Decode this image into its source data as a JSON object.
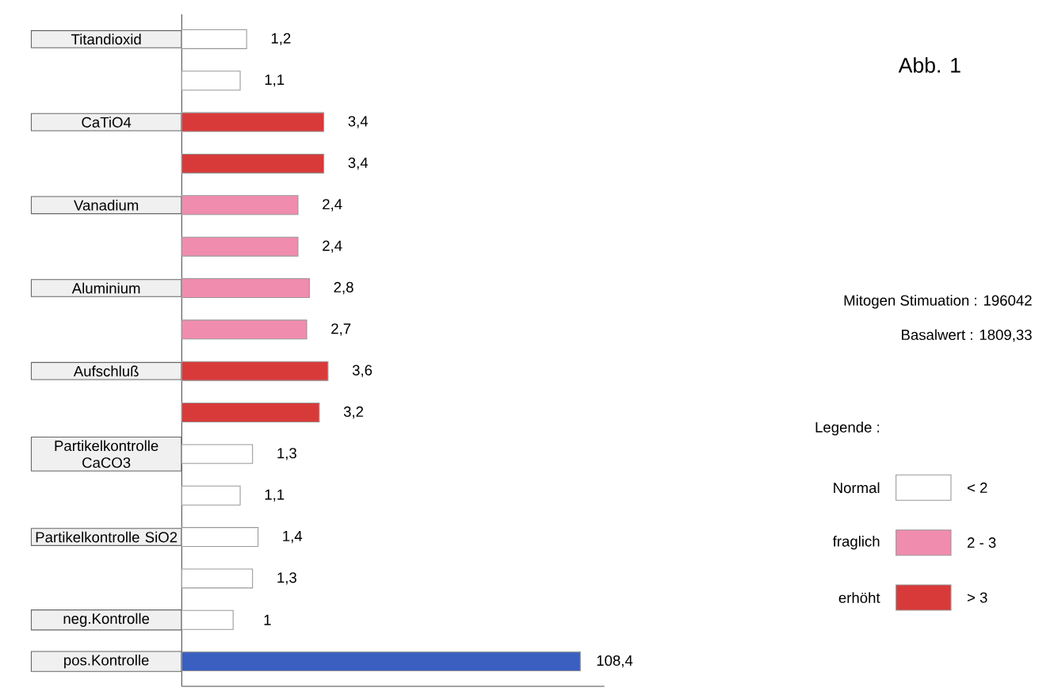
{
  "chart_data": {
    "type": "bar",
    "orientation": "horizontal",
    "title": "Abb. 1",
    "categories": [
      "Titandioxid",
      null,
      "CaTiO4",
      null,
      "Vanadium",
      null,
      "Aluminium",
      null,
      "Aufschluß",
      null,
      "Partikelkontrolle CaCO3",
      null,
      "Partikelkontrolle SiO2",
      null,
      "neg.Kontrolle",
      "pos.Kontrolle"
    ],
    "series": [
      {
        "name": "Normal",
        "color": "#ffffff",
        "values": [
          1.2,
          1.1,
          null,
          null,
          null,
          null,
          null,
          null,
          null,
          null,
          1.3,
          1.1,
          1.4,
          1.3,
          1,
          null
        ],
        "value_labels": [
          "1,2",
          "1,1",
          null,
          null,
          null,
          null,
          null,
          null,
          null,
          null,
          "1,3",
          "1,1",
          "1,4",
          "1,3",
          "1",
          null
        ]
      },
      {
        "name": "fraglich",
        "color": "#f08cae",
        "values": [
          null,
          null,
          null,
          null,
          2.4,
          2.4,
          2.8,
          2.7,
          null,
          null,
          null,
          null,
          null,
          null,
          null,
          null
        ],
        "value_labels": [
          null,
          null,
          null,
          null,
          "2,4",
          "2,4",
          "2,8",
          "2,7",
          null,
          null,
          null,
          null,
          null,
          null,
          null,
          null
        ]
      },
      {
        "name": "erhöht",
        "color": "#d83a3a",
        "values": [
          null,
          null,
          3.4,
          3.4,
          null,
          null,
          null,
          null,
          3.6,
          3.2,
          null,
          null,
          null,
          null,
          null,
          null
        ],
        "value_labels": [
          null,
          null,
          "3,4",
          "3,4",
          null,
          null,
          null,
          null,
          "3,6",
          "3,2",
          null,
          null,
          null,
          null,
          null,
          null
        ]
      },
      {
        "color": "#3a5fc0",
        "values": [
          null,
          null,
          null,
          null,
          null,
          null,
          null,
          null,
          null,
          null,
          null,
          null,
          null,
          null,
          null,
          108.4
        ],
        "value_labels": [
          null,
          null,
          null,
          null,
          null,
          null,
          null,
          null,
          null,
          null,
          null,
          null,
          null,
          null,
          null,
          "108,4"
        ]
      }
    ],
    "xlim": [
      0.5,
      150
    ],
    "log": "x",
    "tick_labels": "y",
    "legend": "right",
    "legend_title": "Legende :",
    "annotations": [
      "Mitogen Stimuation : 196042",
      "Basalwert : 1809,33",
      "< 2",
      "2 - 3",
      "> 3"
    ]
  }
}
